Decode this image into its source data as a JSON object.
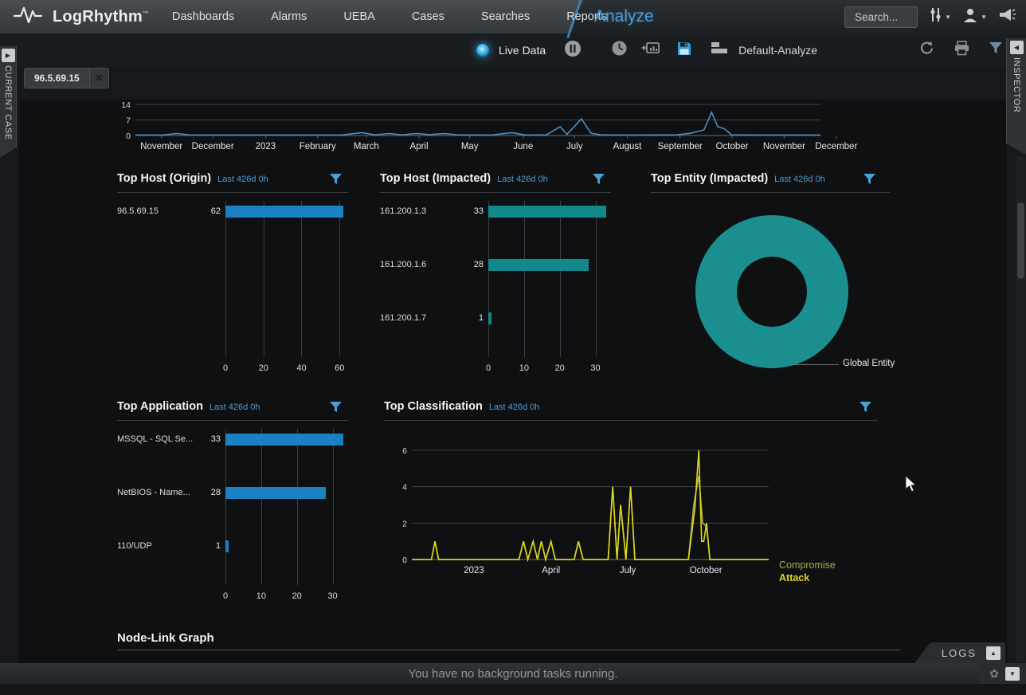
{
  "nav": {
    "brand": "LogRhythm",
    "trademark": "™",
    "items": [
      "Dashboards",
      "Alarms",
      "UEBA",
      "Cases",
      "Searches",
      "Reports"
    ],
    "active_item": "Analyze",
    "search_placeholder": "Search..."
  },
  "toolbar": {
    "live_data_label": "Live Data",
    "view_name": "Default-Analyze"
  },
  "side_tabs": {
    "left": "CURRENT CASE",
    "right": "INSPECTOR"
  },
  "filter_chip": {
    "label": "96.5.69.15"
  },
  "sections": {
    "node_link_title": "Node-Link Graph"
  },
  "status_bar": {
    "message": "You have no background tasks running.",
    "logs_tab": "LOGS"
  },
  "chart_data": [
    {
      "id": "timeline",
      "type": "line",
      "yticks": [
        0,
        7,
        14
      ],
      "ylim": [
        0,
        14
      ],
      "tick_marks": true,
      "x_labels": [
        {
          "label": "November",
          "x": 3.8
        },
        {
          "label": "December",
          "x": 11.3
        },
        {
          "label": "2023",
          "x": 19.0
        },
        {
          "label": "February",
          "x": 26.6
        },
        {
          "label": "March",
          "x": 33.7
        },
        {
          "label": "April",
          "x": 41.4
        },
        {
          "label": "May",
          "x": 48.8
        },
        {
          "label": "June",
          "x": 56.6
        },
        {
          "label": "July",
          "x": 64.1
        },
        {
          "label": "August",
          "x": 71.8
        },
        {
          "label": "September",
          "x": 79.5
        },
        {
          "label": "October",
          "x": 87.1
        },
        {
          "label": "November",
          "x": 94.7
        },
        {
          "label": "December",
          "x": 102.3
        }
      ],
      "series": [
        {
          "color": "#4a90c8",
          "points": [
            [
              0,
              0.2
            ],
            [
              4,
              0.2
            ],
            [
              6,
              0.9
            ],
            [
              8,
              0.2
            ],
            [
              15,
              0.2
            ],
            [
              30,
              0.2
            ],
            [
              33,
              1.3
            ],
            [
              35,
              0.3
            ],
            [
              37,
              0.9
            ],
            [
              39,
              0.3
            ],
            [
              41,
              0.9
            ],
            [
              43,
              0.4
            ],
            [
              45,
              0.9
            ],
            [
              47,
              0.3
            ],
            [
              52,
              0.2
            ],
            [
              55,
              1.3
            ],
            [
              57,
              0.2
            ],
            [
              60,
              0.3
            ],
            [
              62,
              4
            ],
            [
              63,
              0.5
            ],
            [
              65.1,
              7.5
            ],
            [
              66.5,
              1
            ],
            [
              68,
              0.3
            ],
            [
              72,
              0.2
            ],
            [
              79,
              0.3
            ],
            [
              81,
              1
            ],
            [
              83,
              2.5
            ],
            [
              84.1,
              10.5
            ],
            [
              85,
              4
            ],
            [
              86,
              3
            ],
            [
              87,
              0.3
            ],
            [
              92,
              0.2
            ],
            [
              100,
              0.2
            ]
          ]
        }
      ]
    },
    {
      "id": "top_host_origin",
      "type": "bar",
      "title": "Top Host (Origin)",
      "time_range": "Last 426d 0h",
      "categories": [
        "96.5.69.15"
      ],
      "values": [
        62
      ],
      "xticks": [
        0,
        20,
        40,
        60
      ],
      "axis_max": 62,
      "bar_color": "#1a82c4"
    },
    {
      "id": "top_host_impacted",
      "type": "bar",
      "title": "Top Host (Impacted)",
      "time_range": "Last 426d 0h",
      "categories": [
        "161.200.1.3",
        "161.200.1.6",
        "161.200.1.7"
      ],
      "values": [
        33,
        28,
        1
      ],
      "xticks": [
        0,
        10,
        20,
        30
      ],
      "axis_max": 33,
      "bar_color": "#12888a"
    },
    {
      "id": "top_entity_impacted",
      "type": "pie",
      "title": "Top Entity (Impacted)",
      "time_range": "Last 426d 0h",
      "donut": true,
      "slices": [
        {
          "label": "Global Entity",
          "share": 1.0,
          "color": "#1b8f8f"
        }
      ]
    },
    {
      "id": "top_application",
      "type": "bar",
      "title": "Top Application",
      "time_range": "Last 426d 0h",
      "categories": [
        "MSSQL - SQL Se...",
        "NetBIOS - Name...",
        "110/UDP"
      ],
      "values": [
        33,
        28,
        1
      ],
      "xticks": [
        0,
        10,
        20,
        30
      ],
      "axis_max": 33,
      "bar_color": "#1a82c4"
    },
    {
      "id": "top_classification",
      "type": "line",
      "title": "Top Classification",
      "time_range": "Last 426d 0h",
      "yticks": [
        0,
        2,
        4,
        6
      ],
      "ylim": [
        0,
        6
      ],
      "legend_position": "right",
      "x_labels": [
        {
          "label": "2023",
          "x": 17.4
        },
        {
          "label": "April",
          "x": 39.0
        },
        {
          "label": "July",
          "x": 60.5
        },
        {
          "label": "October",
          "x": 82.4
        }
      ],
      "series": [
        {
          "name": "Compromise",
          "color": "#b2ab49",
          "points": [
            [
              0,
              0
            ],
            [
              5.5,
              0
            ],
            [
              6.5,
              1
            ],
            [
              7.5,
              0
            ],
            [
              30,
              0
            ],
            [
              31.3,
              1
            ],
            [
              32.5,
              0
            ],
            [
              34,
              1
            ],
            [
              35.2,
              0
            ],
            [
              36.3,
              1
            ],
            [
              37.5,
              0
            ],
            [
              39,
              1
            ],
            [
              40.2,
              0
            ],
            [
              45.5,
              0
            ],
            [
              46.7,
              1
            ],
            [
              48,
              0
            ],
            [
              55,
              0
            ],
            [
              56.3,
              4
            ],
            [
              57.5,
              0
            ],
            [
              58.5,
              3
            ],
            [
              60,
              0
            ],
            [
              61.3,
              4
            ],
            [
              62.5,
              0
            ],
            [
              77.5,
              0
            ],
            [
              79,
              3
            ],
            [
              80.4,
              4.6
            ],
            [
              81.5,
              2
            ],
            [
              82.6,
              1.8
            ],
            [
              83.5,
              0
            ],
            [
              100,
              0
            ]
          ]
        },
        {
          "name": "Attack",
          "color": "#ddd61e",
          "points": [
            [
              0,
              0
            ],
            [
              5.5,
              0
            ],
            [
              6.5,
              1
            ],
            [
              7.5,
              0
            ],
            [
              30,
              0
            ],
            [
              31.3,
              1
            ],
            [
              32.5,
              0
            ],
            [
              34,
              1
            ],
            [
              35.2,
              0
            ],
            [
              36.3,
              1
            ],
            [
              37.5,
              0
            ],
            [
              39,
              1
            ],
            [
              40.2,
              0
            ],
            [
              45.5,
              0
            ],
            [
              46.7,
              1
            ],
            [
              48,
              0
            ],
            [
              55,
              0
            ],
            [
              56.3,
              4
            ],
            [
              57.5,
              0
            ],
            [
              58.5,
              3
            ],
            [
              60,
              0
            ],
            [
              61.3,
              4
            ],
            [
              62.5,
              0
            ],
            [
              77.5,
              0
            ],
            [
              79.3,
              2.8
            ],
            [
              80.4,
              6
            ],
            [
              81.2,
              1
            ],
            [
              81.8,
              1
            ],
            [
              82.6,
              2
            ],
            [
              83.5,
              0
            ],
            [
              100,
              0
            ]
          ]
        }
      ]
    }
  ]
}
